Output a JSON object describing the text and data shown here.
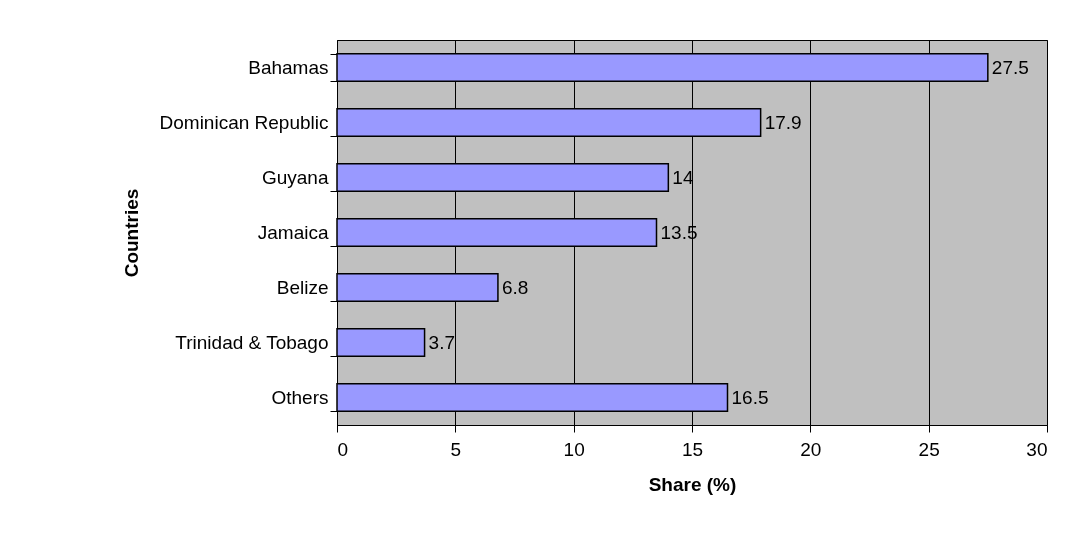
{
  "chart_data": {
    "type": "bar",
    "orientation": "horizontal",
    "xlabel": "Share (%)",
    "ylabel": "Countries",
    "categories": [
      "Bahamas",
      "Dominican Republic",
      "Guyana",
      "Jamaica",
      "Belize",
      "Trinidad & Tobago",
      "Others"
    ],
    "values": [
      27.5,
      17.9,
      14,
      13.5,
      6.8,
      3.7,
      16.5
    ],
    "color": "#9999ff",
    "xlim": [
      0,
      30
    ],
    "xticks": [
      0,
      5,
      10,
      15,
      20,
      25,
      30
    ],
    "grid": "x",
    "data_labels": true
  }
}
